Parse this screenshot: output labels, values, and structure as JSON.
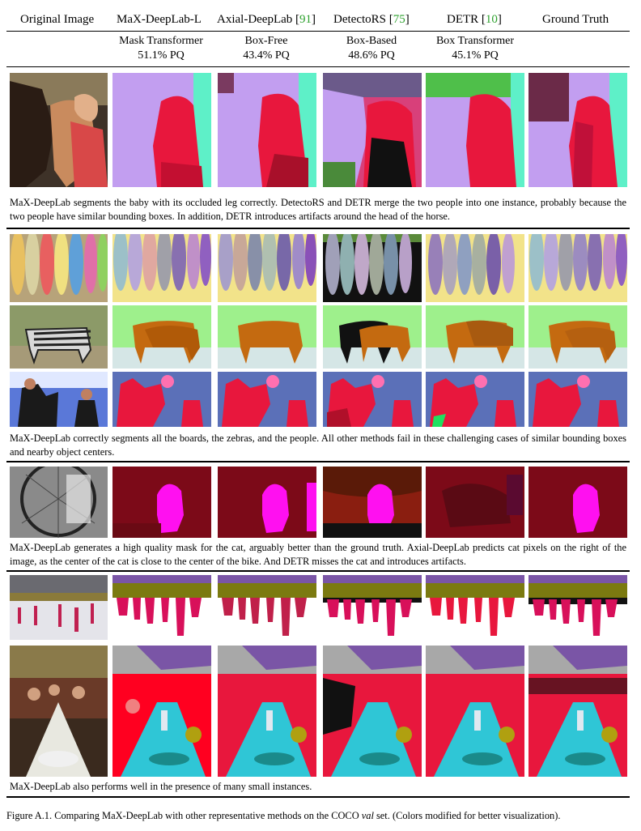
{
  "columns": {
    "original": "Original Image",
    "max": "MaX-DeepLab-L",
    "axial": "Axial-DeepLab",
    "axial_ref": "91",
    "detectors": "DetectoRS",
    "detectors_ref": "75",
    "detr": "DETR",
    "detr_ref": "10",
    "gt": "Ground Truth"
  },
  "subheaders": {
    "max": {
      "type": "Mask Transformer",
      "pq": "51.1% PQ"
    },
    "axial": {
      "type": "Box-Free",
      "pq": "43.4% PQ"
    },
    "detectors": {
      "type": "Box-Based",
      "pq": "48.6% PQ"
    },
    "detr": {
      "type": "Box Transformer",
      "pq": "45.1% PQ"
    }
  },
  "captions": {
    "group1": "MaX-DeepLab segments the baby with its occluded leg correctly. DetectoRS and DETR merge the two people into one instance, probably because the two people have similar bounding boxes. In addition, DETR introduces artifacts around the head of the horse.",
    "group2": "MaX-DeepLab correctly segments all the boards, the zebras, and the people. All other methods fail in these challenging cases of similar bounding boxes and nearby object centers.",
    "group3": "MaX-DeepLab generates a high quality mask for the cat, arguably better than the ground truth. Axial-DeepLab predicts cat pixels on the right of the image, as the center of the cat is close to the center of the bike. And DETR misses the cat and introduces artifacts.",
    "group4": "MaX-DeepLab also performs well in the presence of many small instances."
  },
  "figure_caption": {
    "prefix": "Figure A.1. Comparing MaX-DeepLab with other representative methods on the COCO ",
    "italic": "val",
    "suffix": " set. (Colors modified for better visualization)."
  },
  "colors": {
    "ref_green": "#2ca02c",
    "lavender": "#c29ef0",
    "red": "#e8173d",
    "teal": "#5ef0c8",
    "yellow": "#f2e38a",
    "green_bg": "#9ef08c",
    "blue_bg": "#5b70b8",
    "dark_red": "#7c0a18",
    "magenta": "#ff10f0",
    "olive": "#7b7a10",
    "cyan": "#2fc6d6",
    "purple": "#7a55a6"
  }
}
